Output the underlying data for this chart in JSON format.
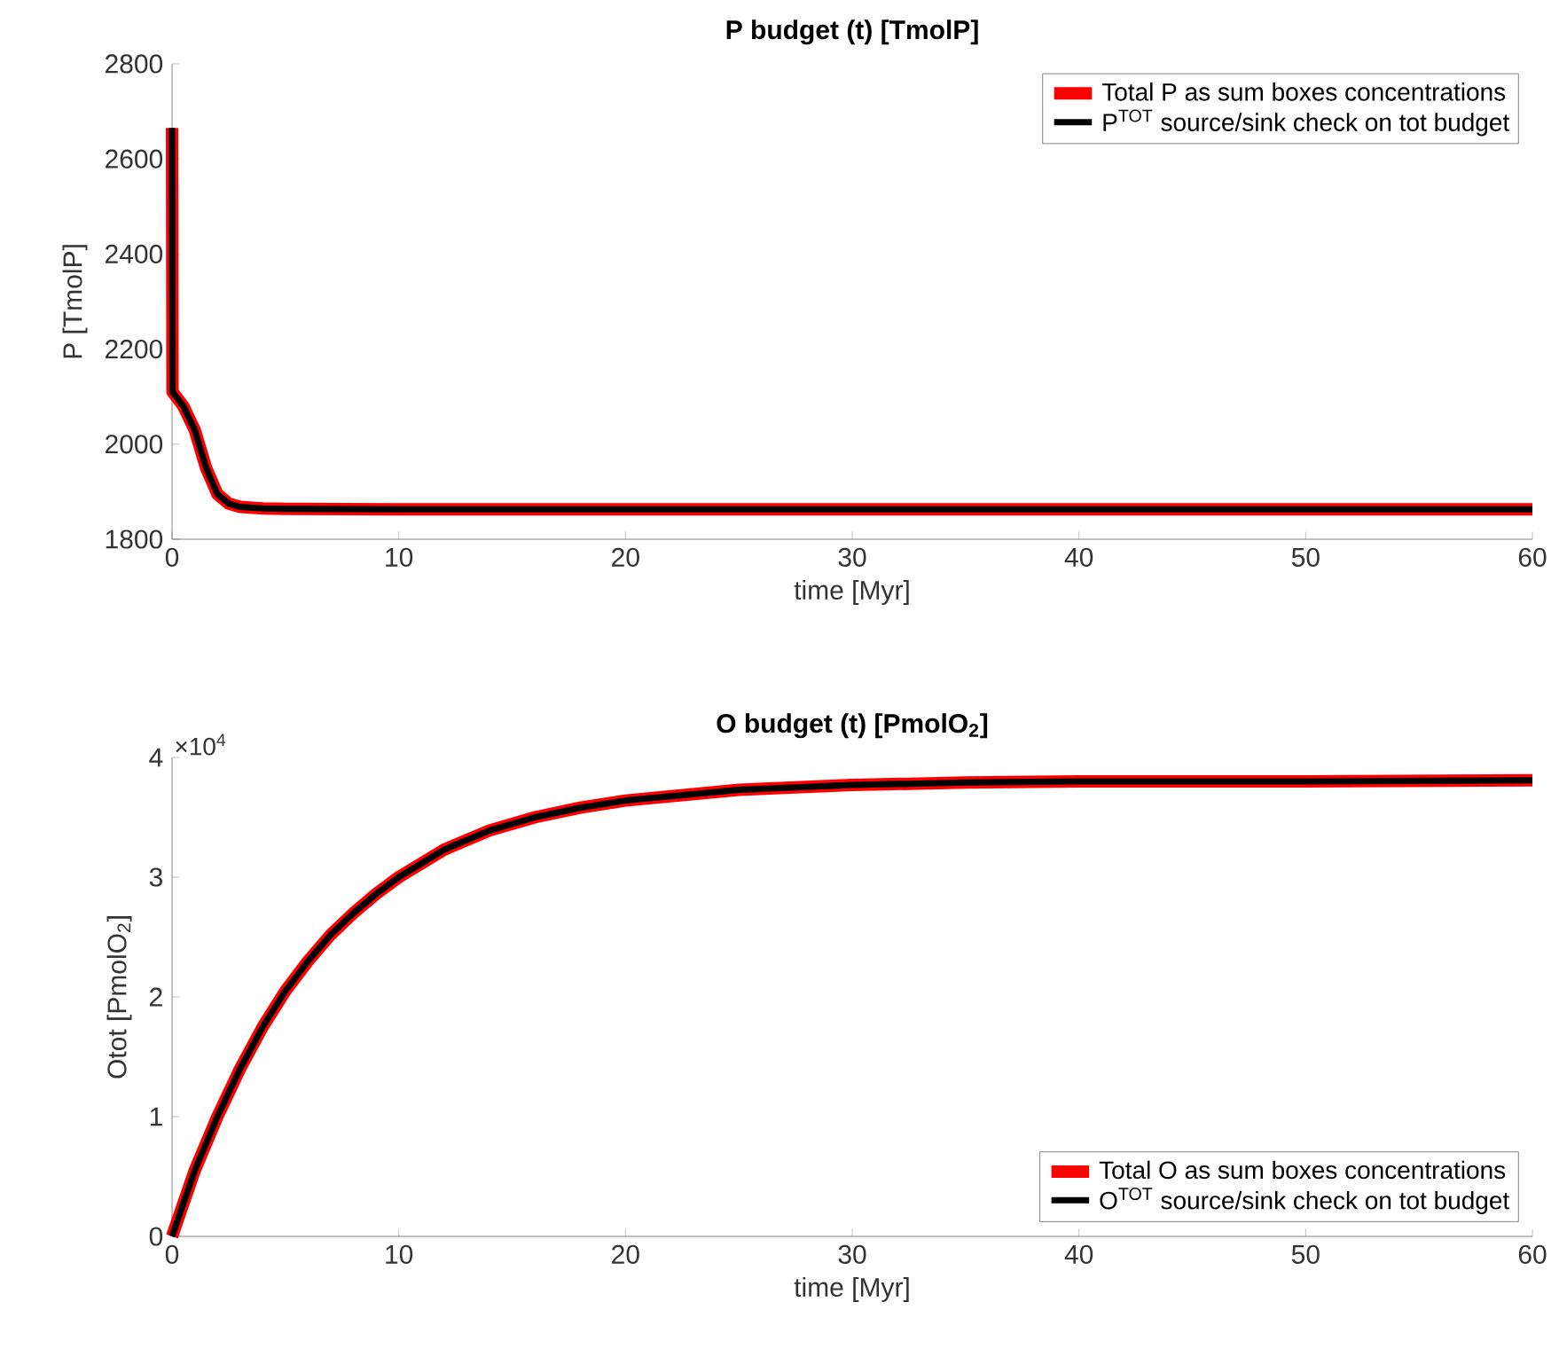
{
  "chart_data": [
    {
      "type": "line",
      "title": "P budget (t) [TmolP]",
      "xlabel": "time [Myr]",
      "ylabel": "P [TmolP]",
      "x": [
        0,
        0.02,
        0.5,
        1,
        1.5,
        2,
        2.5,
        3,
        4,
        5,
        10,
        20,
        30,
        40,
        50,
        60
      ],
      "series": [
        {
          "name": "Total P as sum boxes concentrations",
          "color": "#ff0000",
          "values": [
            2665,
            2110,
            2080,
            2030,
            1950,
            1895,
            1875,
            1868,
            1865,
            1864,
            1863,
            1863,
            1863,
            1863,
            1863,
            1863
          ]
        },
        {
          "name": "P$^{TOT}$ source/sink check on tot budget",
          "color": "#000000",
          "values": [
            2665,
            2110,
            2080,
            2030,
            1950,
            1895,
            1875,
            1868,
            1865,
            1864,
            1863,
            1863,
            1863,
            1863,
            1863,
            1863
          ]
        }
      ],
      "xlim": [
        0,
        60
      ],
      "ylim": [
        1800,
        2800
      ],
      "xticks": [
        0,
        10,
        20,
        30,
        40,
        50,
        60
      ],
      "yticks": [
        1800,
        2000,
        2200,
        2400,
        2600,
        2800
      ],
      "legend": "top right"
    },
    {
      "type": "line",
      "title": "O budget (t) [PmolO$_{2}$]",
      "xlabel": "time [Myr]",
      "ylabel": "Otot [PmolO$_{2}$]",
      "x": [
        0,
        1,
        2,
        3,
        4,
        5,
        6,
        7,
        8,
        9,
        10,
        12,
        14,
        16,
        18,
        20,
        25,
        30,
        35,
        40,
        50,
        60
      ],
      "series": [
        {
          "name": "Total O as sum boxes concentrations",
          "color": "#ff0000",
          "values": [
            0,
            0.55,
            1.0,
            1.4,
            1.75,
            2.05,
            2.3,
            2.52,
            2.7,
            2.86,
            3.0,
            3.23,
            3.39,
            3.5,
            3.58,
            3.64,
            3.73,
            3.77,
            3.79,
            3.8,
            3.8,
            3.81
          ]
        },
        {
          "name": "O$^{TOT}$ source/sink check on tot budget",
          "color": "#000000",
          "values": [
            0,
            0.55,
            1.0,
            1.4,
            1.75,
            2.05,
            2.3,
            2.52,
            2.7,
            2.86,
            3.0,
            3.23,
            3.39,
            3.5,
            3.58,
            3.64,
            3.73,
            3.77,
            3.79,
            3.8,
            3.8,
            3.81
          ]
        }
      ],
      "xlim": [
        0,
        60
      ],
      "ylim": [
        0,
        4
      ],
      "xticks": [
        0,
        10,
        20,
        30,
        40,
        50,
        60
      ],
      "yticks": [
        0,
        1,
        2,
        3,
        4
      ],
      "annotations": [
        "×10$^{4}$"
      ],
      "legend": "bottom right"
    }
  ]
}
